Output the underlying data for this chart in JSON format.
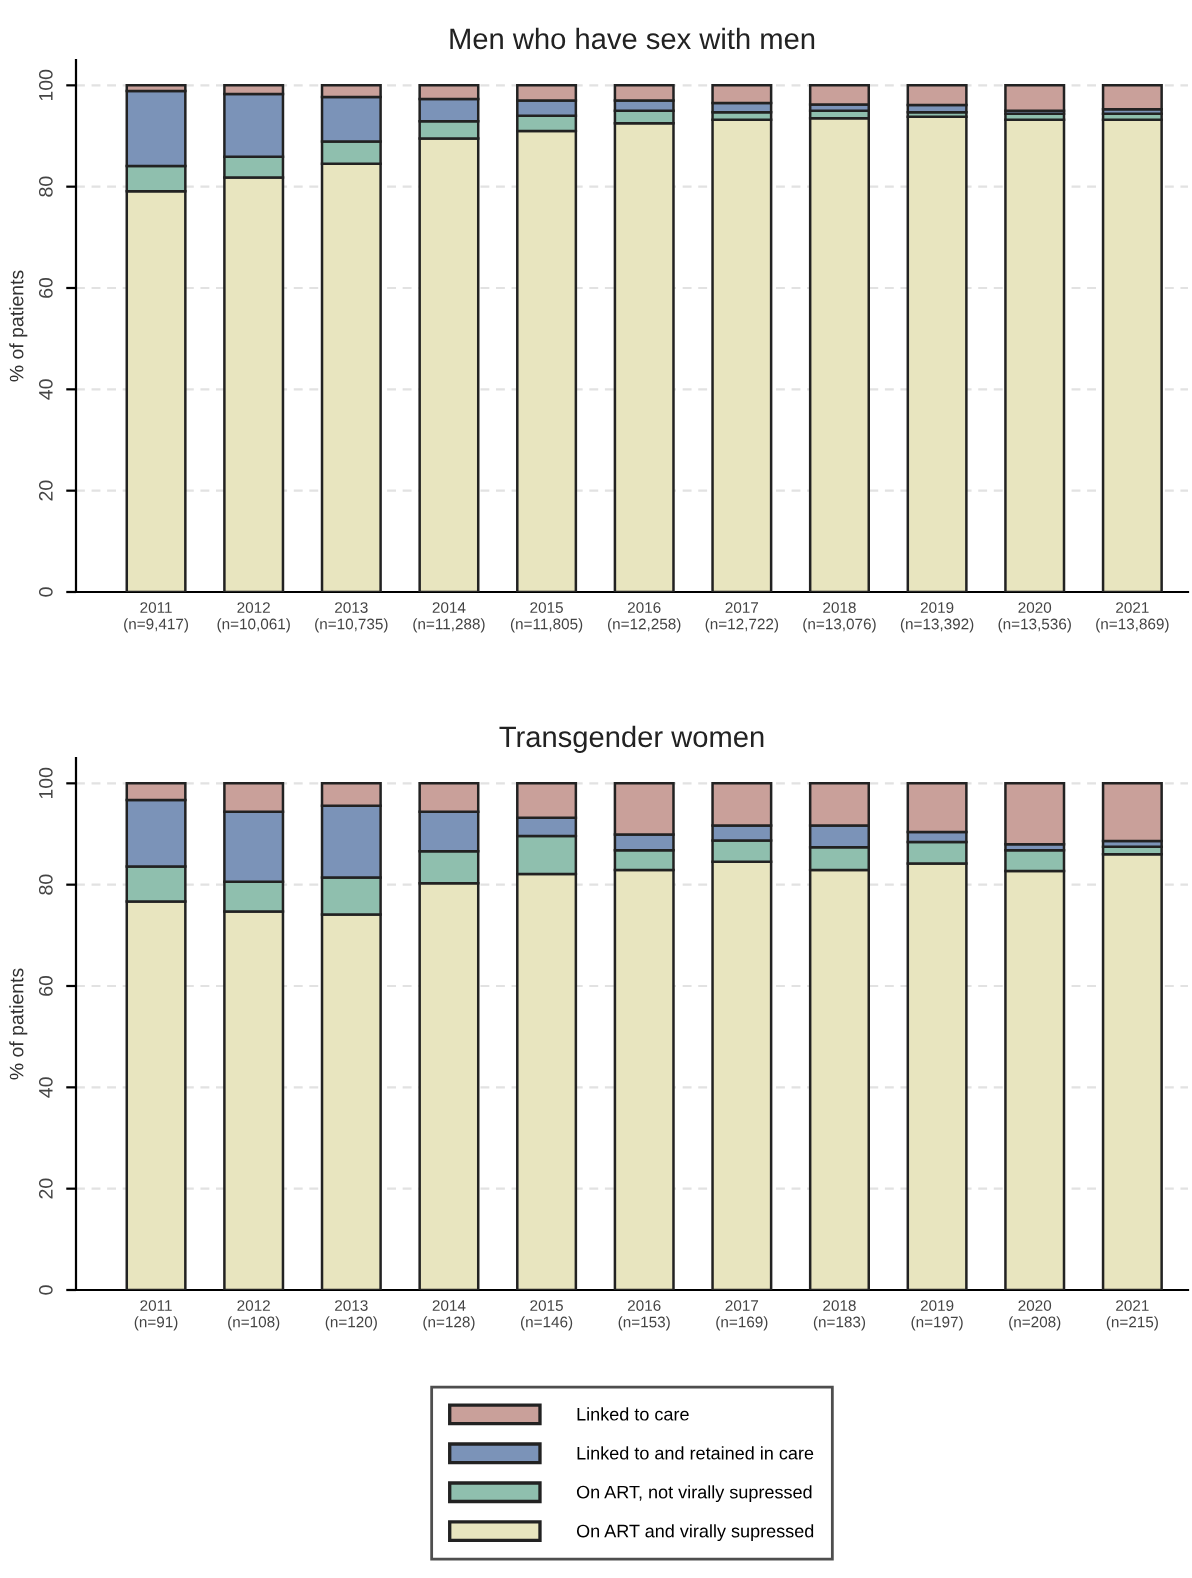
{
  "chart_data": [
    {
      "type": "bar",
      "title": "Men who have sex with men",
      "ylabel": "% of patients",
      "stacked": true,
      "grid": "y",
      "categories": [
        "2011\n(n=9,417)",
        "2012\n(n=10,061)",
        "2013\n(n=10,735)",
        "2014\n(n=11,288)",
        "2015\n(n=11,805)",
        "2016\n(n=12,258)",
        "2017\n(n=12,722)",
        "2018\n(n=13,076)",
        "2019\n(n=13,392)",
        "2020\n(n=13,536)",
        "2021\n(n=13,869)"
      ],
      "ylim": [
        0,
        105
      ],
      "yticks": [
        0,
        20,
        40,
        60,
        80,
        100
      ],
      "series": [
        {
          "color": "#e8e5bf",
          "values": [
            79.1,
            81.8,
            84.5,
            89.5,
            91.0,
            92.5,
            93.2,
            93.5,
            93.8,
            93.2,
            93.2
          ]
        },
        {
          "color": "#8fbfae",
          "values": [
            5.0,
            4.1,
            4.4,
            3.4,
            3.0,
            2.5,
            1.5,
            1.5,
            0.9,
            1.2,
            1.2
          ]
        },
        {
          "color": "#7b93b8",
          "values": [
            14.8,
            12.4,
            8.8,
            4.4,
            3.0,
            2.0,
            1.8,
            1.2,
            1.4,
            0.6,
            0.9
          ]
        },
        {
          "color": "#c9a09a",
          "values": [
            1.1,
            1.7,
            2.3,
            2.7,
            3.0,
            3.0,
            3.5,
            3.8,
            3.9,
            5.0,
            4.7
          ]
        }
      ]
    },
    {
      "type": "bar",
      "title": "Transgender women",
      "ylabel": "% of patients",
      "stacked": true,
      "grid": "y",
      "legend": "bottom",
      "categories": [
        "2011\n(n=91)",
        "2012\n(n=108)",
        "2013\n(n=120)",
        "2014\n(n=128)",
        "2015\n(n=146)",
        "2016\n(n=153)",
        "2017\n(n=169)",
        "2018\n(n=183)",
        "2019\n(n=197)",
        "2020\n(n=208)",
        "2021\n(n=215)"
      ],
      "ylim": [
        0,
        105
      ],
      "yticks": [
        0,
        20,
        40,
        60,
        80,
        100
      ],
      "series": [
        {
          "name": "On ART and virally supressed",
          "color": "#e8e5bf",
          "values": [
            76.7,
            74.7,
            74.1,
            80.3,
            82.1,
            82.9,
            84.5,
            82.9,
            84.2,
            82.7,
            86.0
          ]
        },
        {
          "name": "On ART, not virally supressed",
          "color": "#8fbfae",
          "values": [
            6.9,
            5.9,
            7.3,
            6.3,
            7.5,
            3.9,
            4.2,
            4.5,
            4.2,
            4.1,
            1.5
          ]
        },
        {
          "name": "Linked to and retained in care",
          "color": "#7b93b8",
          "values": [
            13.1,
            13.8,
            14.2,
            7.8,
            3.6,
            3.1,
            3.0,
            4.3,
            2.0,
            1.2,
            1.1
          ]
        },
        {
          "name": "Linked to care",
          "color": "#c9a09a",
          "values": [
            3.3,
            5.6,
            4.4,
            5.6,
            6.8,
            10.1,
            8.3,
            8.3,
            9.6,
            12.0,
            11.4
          ]
        }
      ]
    }
  ]
}
